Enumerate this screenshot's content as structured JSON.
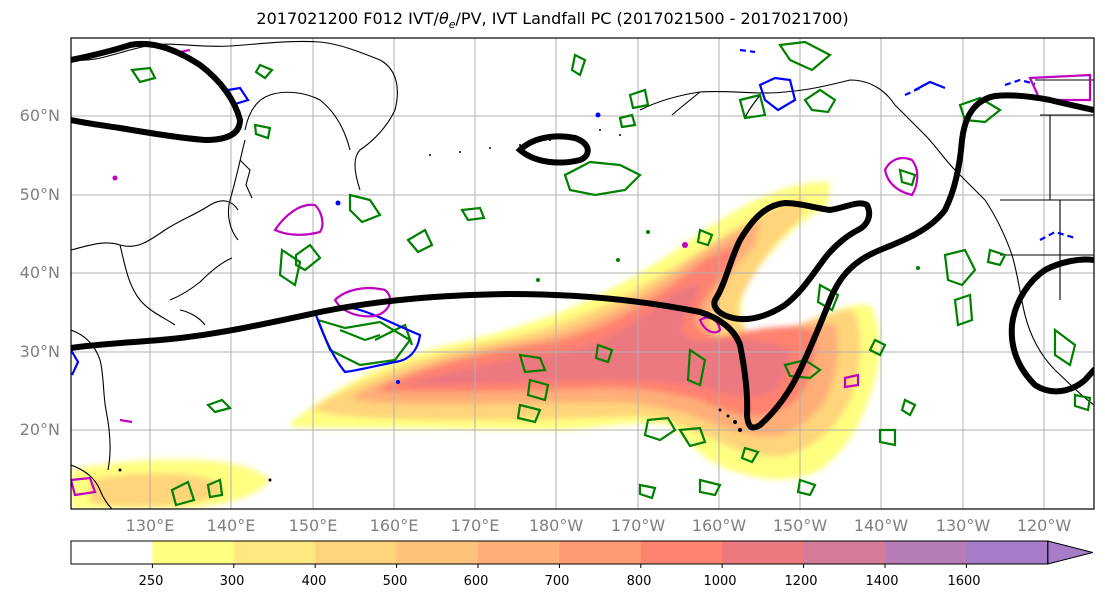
{
  "title_main": "2017021200 F012 IVT/",
  "title_theta": "θ",
  "title_theta_sub": "e",
  "title_rest": "/PV, IVT Landfall PC (2017021500 - 2017021700)",
  "lat_labels": [
    "60°N",
    "50°N",
    "40°N",
    "30°N",
    "20°N"
  ],
  "lon_labels": [
    "130°E",
    "140°E",
    "150°E",
    "160°E",
    "170°E",
    "180°W",
    "170°W",
    "160°W",
    "150°W",
    "140°W",
    "130°W",
    "120°W"
  ],
  "colorbar": {
    "ticks": [
      "250",
      "300",
      "400",
      "500",
      "600",
      "700",
      "800",
      "1000",
      "1200",
      "1400",
      "1600"
    ],
    "colors": [
      "#ffffff",
      "#ffff80",
      "#ffe880",
      "#ffd47a",
      "#ffc27a",
      "#ffae78",
      "#ff9a72",
      "#ff8270",
      "#ec7880",
      "#d47a9a",
      "#b67cb8",
      "#a67cc8"
    ]
  },
  "legend_colors": {
    "pv_contour": "#000000",
    "theta_e_green": "#008000",
    "theta_e_blue": "#0000ff",
    "theta_e_magenta": "#c000c0"
  }
}
